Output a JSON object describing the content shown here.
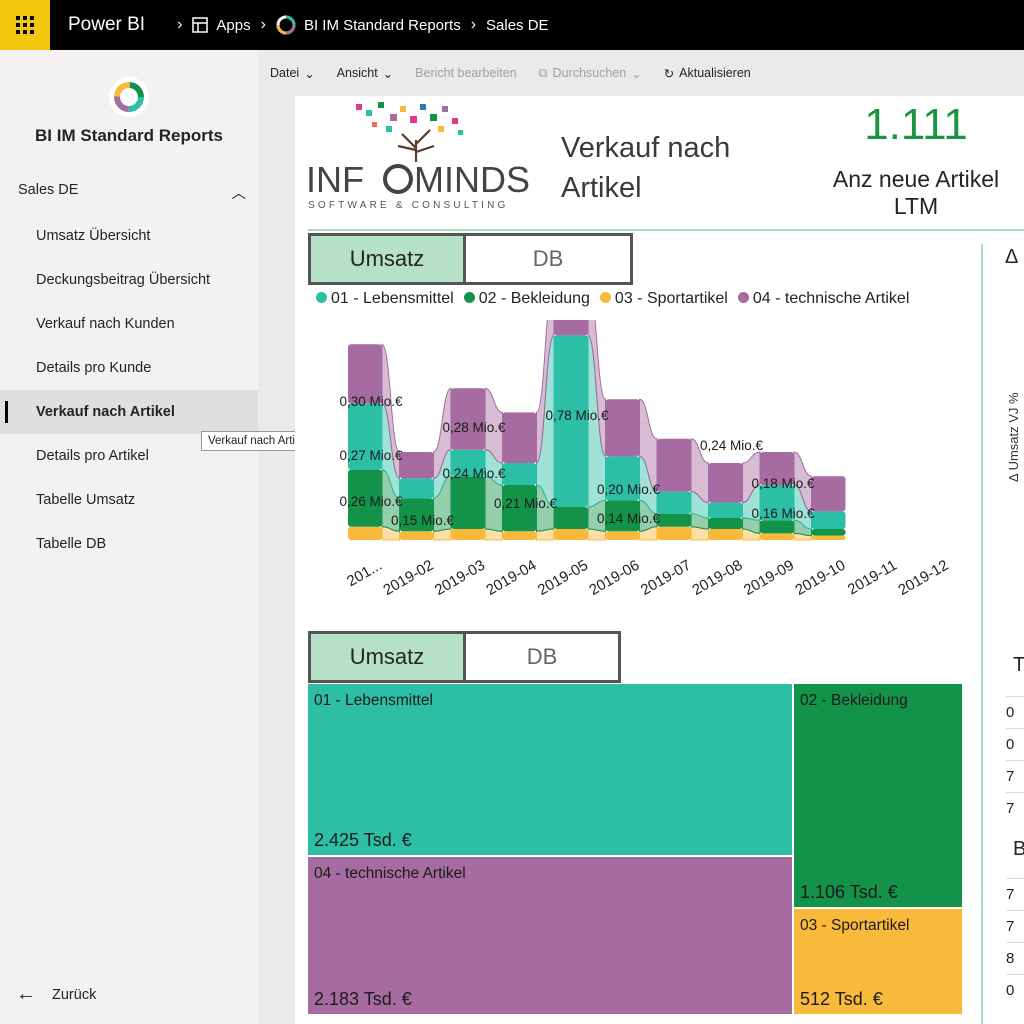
{
  "topbar": {
    "brand": "Power BI",
    "crumbs": [
      "Apps",
      "BI IM Standard Reports",
      "Sales DE"
    ]
  },
  "sidebar": {
    "workspace_title": "BI IM Standard Reports",
    "section": "Sales DE",
    "items": [
      {
        "label": "Umsatz Übersicht"
      },
      {
        "label": "Deckungsbeitrag Übersicht"
      },
      {
        "label": "Verkauf nach Kunden"
      },
      {
        "label": "Details pro Kunde"
      },
      {
        "label": "Verkauf nach Artikel",
        "active": true
      },
      {
        "label": "Details pro Artikel"
      },
      {
        "label": "Tabelle Umsatz"
      },
      {
        "label": "Tabelle DB"
      }
    ],
    "tooltip": "Verkauf nach Artikel",
    "back": "Zurück"
  },
  "actionbar": {
    "datei": "Datei",
    "ansicht": "Ansicht",
    "bericht": "Bericht bearbeiten",
    "durchsuchen": "Durchsuchen",
    "aktualisieren": "Aktualisieren"
  },
  "report": {
    "logo_main_a": "INF",
    "logo_main_b": "MINDS",
    "logo_sub": "SOFTWARE & CONSULTING",
    "title": "Verkauf nach Artikel",
    "kpi_value": "1.111",
    "kpi_label": "Anz neue Artikel LTM",
    "toggle1": {
      "on": "Umsatz",
      "off": "DB"
    },
    "toggle2": {
      "on": "Umsatz",
      "off": "DB"
    },
    "right_title_fragment": "Δ",
    "right_ylabel": "Δ Umsatz VJ %",
    "right_t": "T",
    "right_b": "B",
    "right_rows_1": [
      "0",
      "0",
      "7",
      "7"
    ],
    "right_rows_2": [
      "7",
      "7",
      "8",
      "0"
    ]
  },
  "colors": {
    "lebensmittel": "#2cbfa6",
    "bekleidung": "#13934a",
    "sport": "#f9b93a",
    "technik": "#a66ba0",
    "kpi": "#1a9641"
  },
  "chart_data": [
    {
      "type": "area",
      "x": [
        "2019-01",
        "2019-02",
        "2019-03",
        "2019-04",
        "2019-05",
        "2019-06",
        "2019-07",
        "2019-08",
        "2019-09",
        "2019-10",
        "2019-11",
        "2019-12"
      ],
      "x_tick_labels": [
        "201...",
        "2019-02",
        "2019-03",
        "2019-04",
        "2019-05",
        "2019-06",
        "2019-07",
        "2019-08",
        "2019-09",
        "2019-10",
        "2019-11",
        "2019-12"
      ],
      "series": [
        {
          "name": "01 - Lebensmittel",
          "values": [
            0.3,
            0.09,
            0.12,
            0.1,
            0.78,
            0.2,
            0.1,
            0.07,
            0.16,
            0.08,
            0,
            0
          ]
        },
        {
          "name": "02 - Bekleidung",
          "values": [
            0.26,
            0.15,
            0.24,
            0.21,
            0.1,
            0.14,
            0.06,
            0.05,
            0.06,
            0.03,
            0,
            0
          ]
        },
        {
          "name": "03 - Sportartikel",
          "values": [
            0.06,
            0.04,
            0.05,
            0.04,
            0.05,
            0.04,
            0.06,
            0.05,
            0.03,
            0.02,
            0,
            0
          ]
        },
        {
          "name": "04 - technische Artikel",
          "values": [
            0.27,
            0.12,
            0.28,
            0.23,
            0.24,
            0.26,
            0.24,
            0.18,
            0.15,
            0.16,
            0,
            0
          ]
        }
      ],
      "annotations": [
        "0,30 Mio.€",
        "0,27 Mio.€",
        "0,26 Mio.€",
        "0,15 Mio.€",
        "0,28 Mio.€",
        "0,24 Mio.€",
        "0,21 Mio.€",
        "0,78 Mio.€",
        "0,20 Mio.€",
        "0,14 Mio.€",
        "0,24 Mio.€",
        "0,18 Mio.€",
        "0,16 Mio.€"
      ],
      "legend": "top-left"
    },
    {
      "type": "treemap",
      "items": [
        {
          "name": "01 - Lebensmittel",
          "label": "2.425 Tsd. €",
          "value": 2425
        },
        {
          "name": "04 - technische Artikel",
          "label": "2.183 Tsd. €",
          "value": 2183
        },
        {
          "name": "02 - Bekleidung",
          "label": "1.106 Tsd. €",
          "value": 1106
        },
        {
          "name": "03 - Sportartikel",
          "label": "512 Tsd. €",
          "value": 512
        }
      ]
    }
  ]
}
